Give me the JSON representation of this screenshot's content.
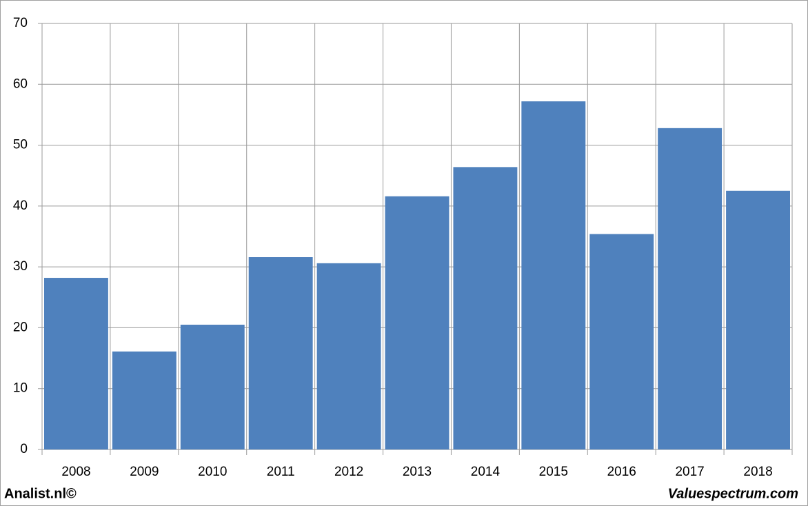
{
  "chart_data": {
    "type": "bar",
    "categories": [
      "2008",
      "2009",
      "2010",
      "2011",
      "2012",
      "2013",
      "2014",
      "2015",
      "2016",
      "2017",
      "2018"
    ],
    "values": [
      28.2,
      16.1,
      20.5,
      31.6,
      30.6,
      41.6,
      46.4,
      57.2,
      35.4,
      52.8,
      42.5
    ],
    "color": "#4f81bd",
    "ylim": [
      0,
      70
    ],
    "yticks": [
      0,
      10,
      20,
      30,
      40,
      50,
      60,
      70
    ],
    "grid": true,
    "footer_left": "Analist.nl©",
    "footer_right": "Valuespectrum.com"
  }
}
